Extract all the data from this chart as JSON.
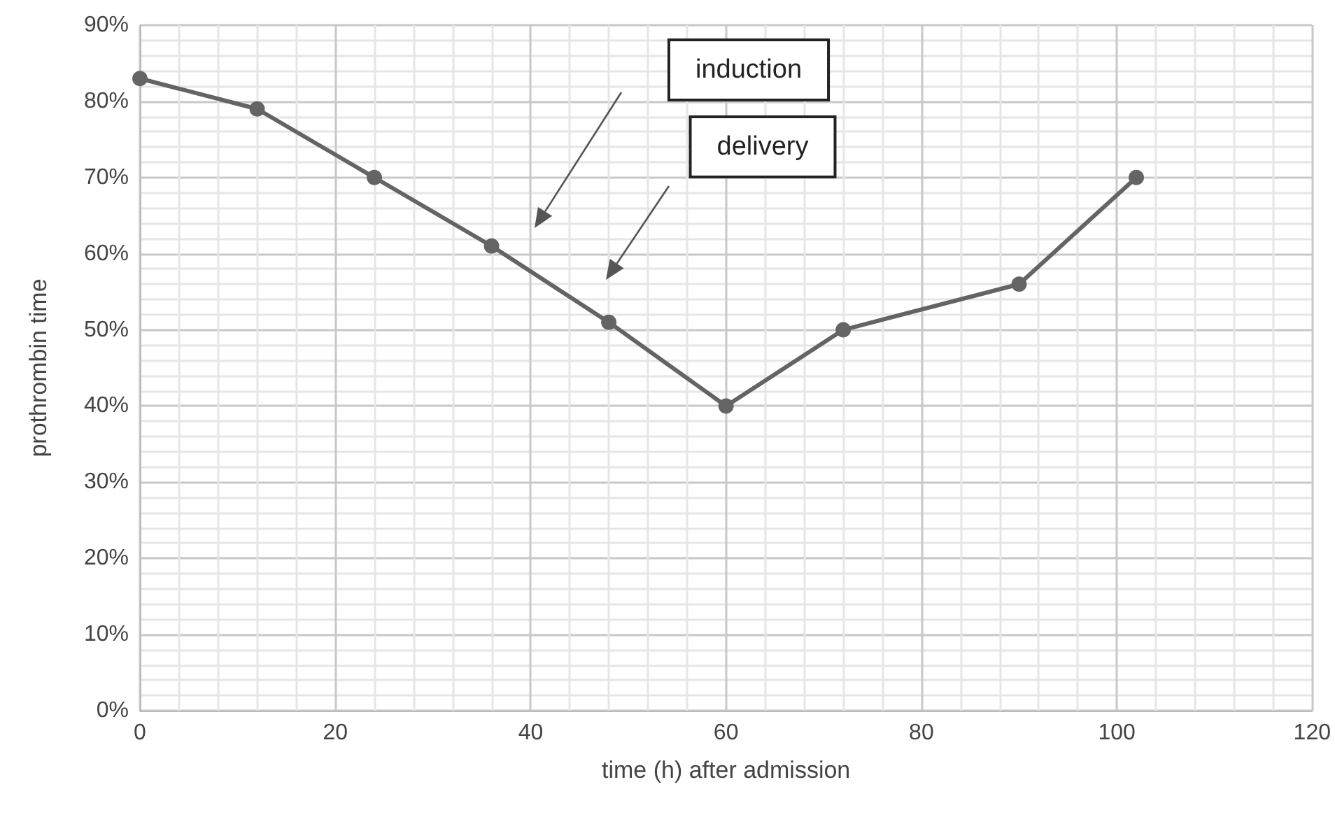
{
  "chart_data": {
    "type": "line",
    "xlabel": "time (h) after admission",
    "ylabel": "prothrombin time",
    "x": [
      0,
      12,
      24,
      36,
      48,
      60,
      72,
      90,
      102
    ],
    "series": [
      {
        "color": "#646464",
        "values": [
          83,
          79,
          70,
          61,
          51,
          40,
          50,
          56,
          70
        ]
      }
    ],
    "xlim": [
      0,
      120
    ],
    "xticks": [
      0,
      20,
      40,
      60,
      80,
      100,
      120
    ],
    "ylim": [
      0,
      90
    ],
    "yticks": [
      {
        "value": 0,
        "label": "0%"
      },
      {
        "value": 10,
        "label": "10%"
      },
      {
        "value": 20,
        "label": "20%"
      },
      {
        "value": 30,
        "label": "30%"
      },
      {
        "value": 40,
        "label": "40%"
      },
      {
        "value": 50,
        "label": "50%"
      },
      {
        "value": 60,
        "label": "60%"
      },
      {
        "value": 70,
        "label": "70%"
      },
      {
        "value": 80,
        "label": "80%"
      },
      {
        "value": 90,
        "label": "90%"
      }
    ],
    "annotations": [
      "induction",
      "delivery"
    ],
    "grid": true,
    "marker": "circle",
    "line_style": "solid"
  }
}
